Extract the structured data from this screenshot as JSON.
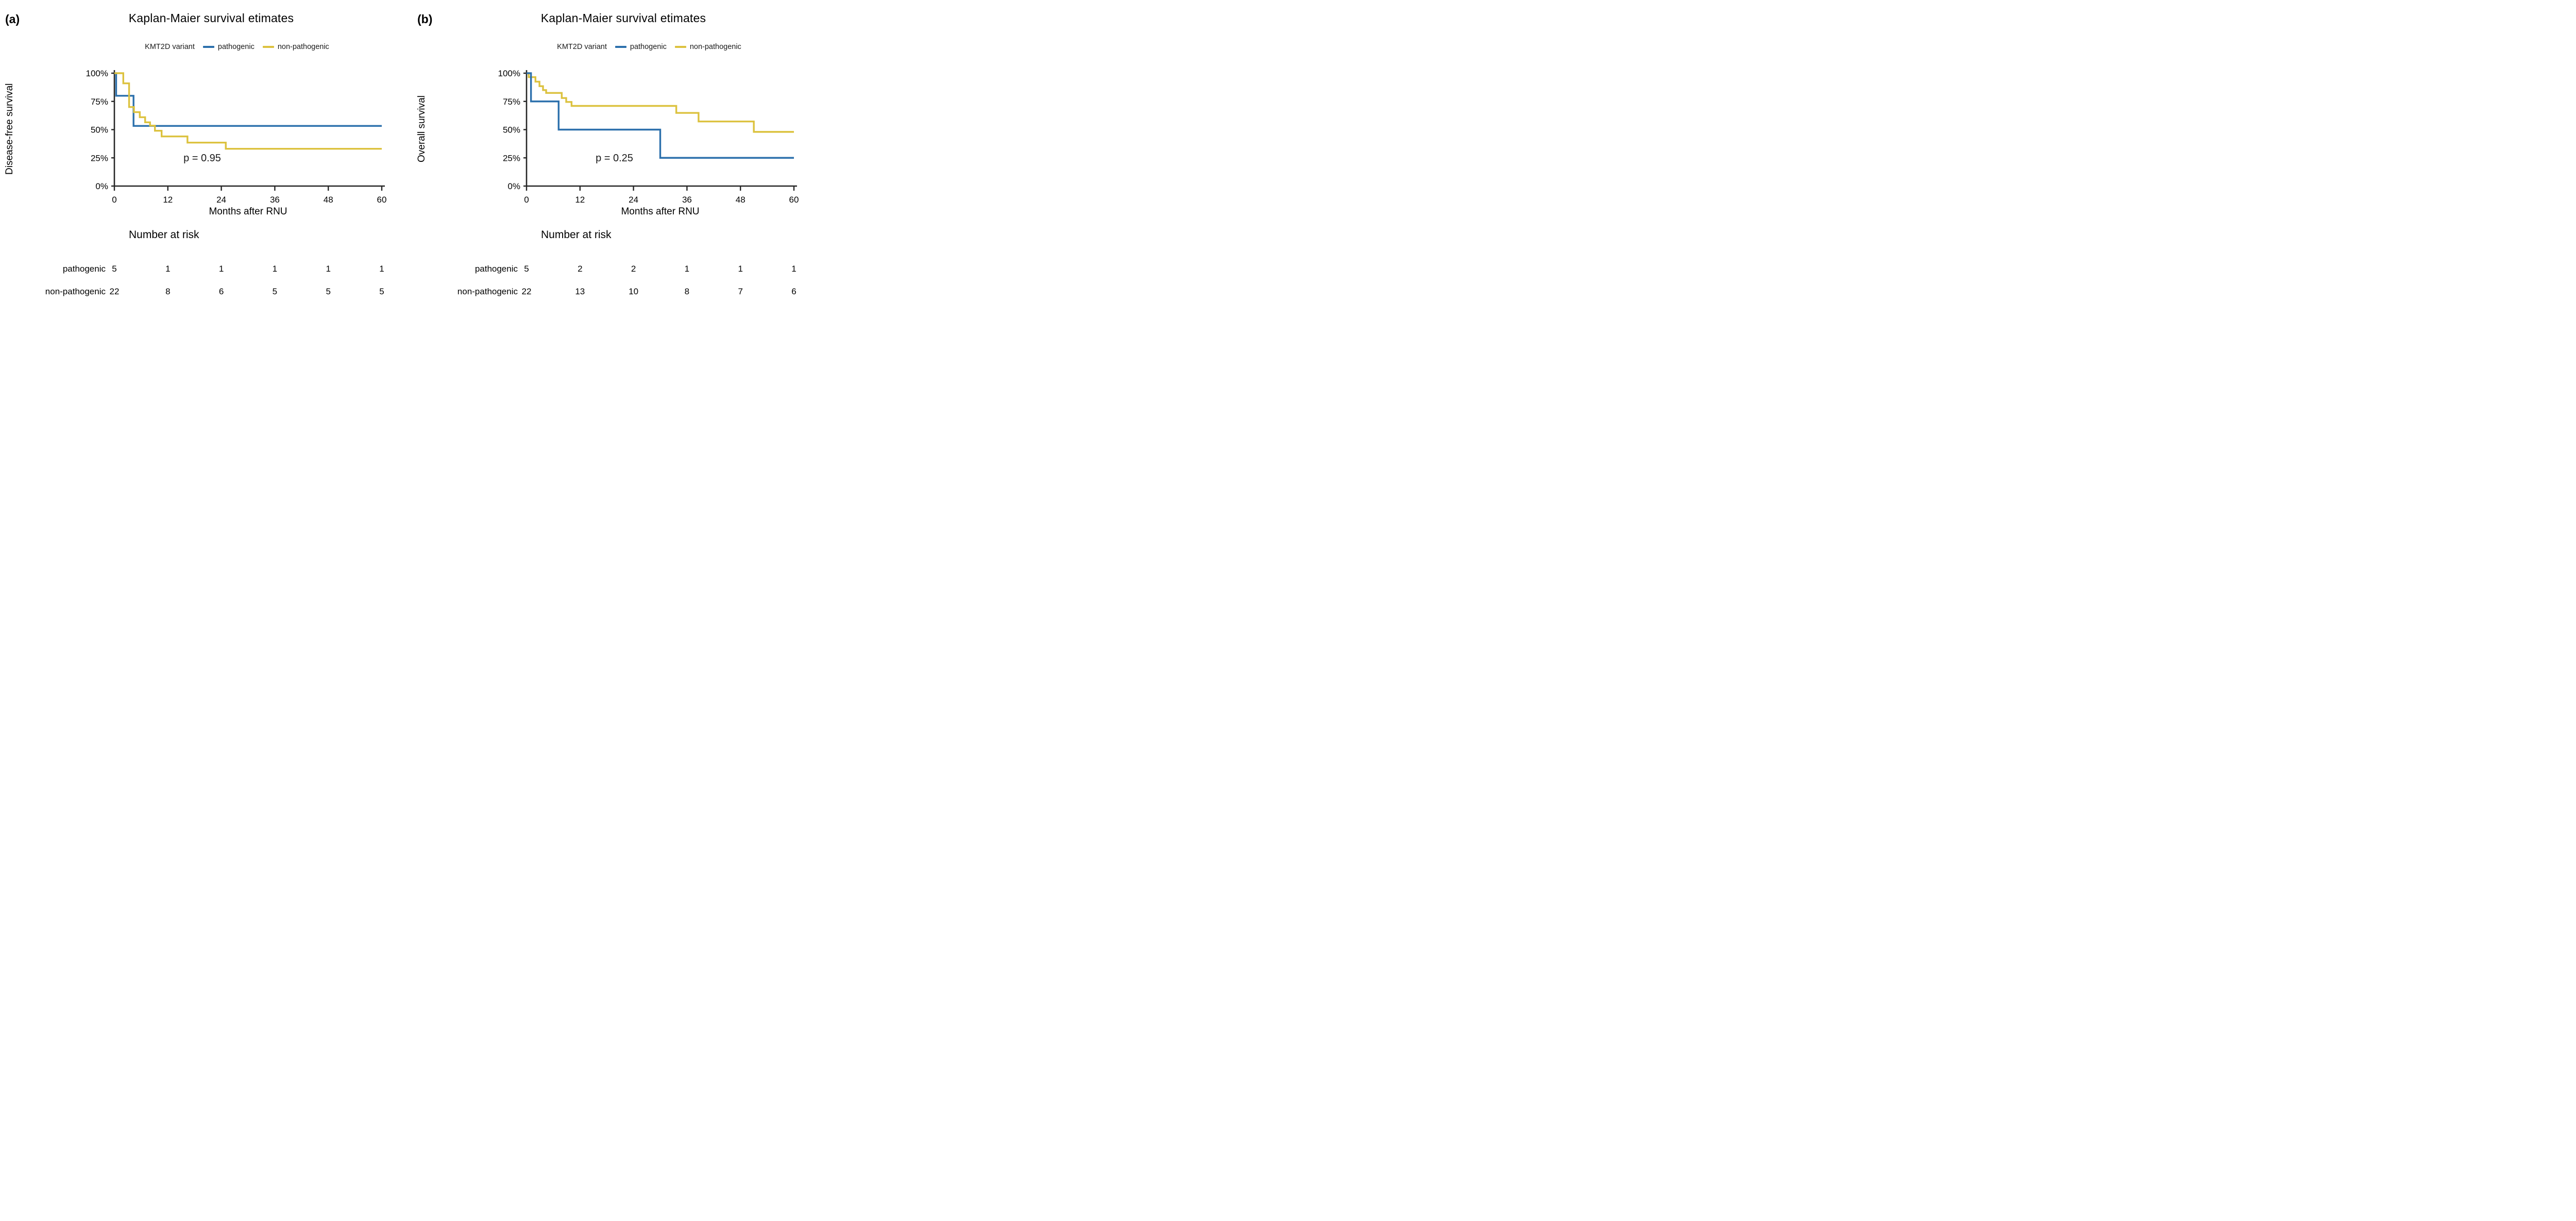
{
  "colors": {
    "background": "#ffffff",
    "text": "#1a1a1a",
    "axis": "#262626",
    "pathogenic": "#2c70ac",
    "non_pathogenic": "#dcc23f"
  },
  "legend": {
    "title": "KMT2D variant",
    "items": [
      {
        "label": "pathogenic",
        "color": "#2c70ac"
      },
      {
        "label": "non-pathogenic",
        "color": "#dcc23f"
      }
    ]
  },
  "chart_data": [
    {
      "type": "line",
      "subtype": "kaplan-meier-step",
      "letter": "(a)",
      "title": "Kaplan-Maier survival etimates",
      "ylabel": "Disease-free survival",
      "xlabel": "Months after RNU",
      "p_label": "p = 0.95",
      "xlim": [
        0,
        60
      ],
      "ylim": [
        0,
        100
      ],
      "x_ticks": [
        0,
        12,
        24,
        36,
        48,
        60
      ],
      "y_ticks": [
        {
          "value": 100,
          "label": "100%"
        },
        {
          "value": 75,
          "label": "75%"
        },
        {
          "value": 50,
          "label": "50%"
        },
        {
          "value": 25,
          "label": "25%"
        },
        {
          "value": 0,
          "label": "0%"
        }
      ],
      "grid": false,
      "legend_position": "top",
      "series": [
        {
          "name": "pathogenic",
          "color": "#2c70ac",
          "points": [
            [
              0,
              100
            ],
            [
              0.4,
              100
            ],
            [
              0.4,
              80
            ],
            [
              4.3,
              80
            ],
            [
              4.3,
              53.3
            ],
            [
              60,
              53.3
            ]
          ]
        },
        {
          "name": "non-pathogenic",
          "color": "#dcc23f",
          "points": [
            [
              0,
              100
            ],
            [
              2,
              100
            ],
            [
              2,
              91
            ],
            [
              3.3,
              91
            ],
            [
              3.3,
              70
            ],
            [
              4.4,
              70
            ],
            [
              4.4,
              65.5
            ],
            [
              5.7,
              65.5
            ],
            [
              5.7,
              61
            ],
            [
              6.9,
              61
            ],
            [
              6.9,
              56.5
            ],
            [
              8,
              56.5
            ],
            [
              8,
              53.5
            ],
            [
              9.1,
              53.5
            ],
            [
              9.1,
              49
            ],
            [
              10.6,
              49
            ],
            [
              10.6,
              44
            ],
            [
              16.4,
              44
            ],
            [
              16.4,
              38.5
            ],
            [
              25,
              38.5
            ],
            [
              25,
              33
            ],
            [
              60,
              33
            ]
          ]
        }
      ],
      "risk_table": {
        "title": "Number at risk",
        "time_points": [
          0,
          12,
          24,
          36,
          48,
          60
        ],
        "rows": [
          {
            "label": "pathogenic",
            "values": [
              5,
              1,
              1,
              1,
              1,
              1
            ]
          },
          {
            "label": "non-pathogenic",
            "values": [
              22,
              8,
              6,
              5,
              5,
              5
            ]
          }
        ]
      }
    },
    {
      "type": "line",
      "subtype": "kaplan-meier-step",
      "letter": "(b)",
      "title": "Kaplan-Maier survival etimates",
      "ylabel": "Overall survival",
      "xlabel": "Months after RNU",
      "p_label": "p = 0.25",
      "xlim": [
        0,
        60
      ],
      "ylim": [
        0,
        100
      ],
      "x_ticks": [
        0,
        12,
        24,
        36,
        48,
        60
      ],
      "y_ticks": [
        {
          "value": 100,
          "label": "100%"
        },
        {
          "value": 75,
          "label": "75%"
        },
        {
          "value": 50,
          "label": "50%"
        },
        {
          "value": 25,
          "label": "25%"
        },
        {
          "value": 0,
          "label": "0%"
        }
      ],
      "grid": false,
      "legend_position": "top",
      "series": [
        {
          "name": "non-pathogenic",
          "color": "#dcc23f",
          "points": [
            [
              0,
              100
            ],
            [
              0.5,
              100
            ],
            [
              0.5,
              96.5
            ],
            [
              2,
              96.5
            ],
            [
              2,
              92.5
            ],
            [
              2.9,
              92.5
            ],
            [
              2.9,
              88.5
            ],
            [
              3.7,
              88.5
            ],
            [
              3.7,
              85
            ],
            [
              4.4,
              85
            ],
            [
              4.4,
              82.5
            ],
            [
              7.9,
              82.5
            ],
            [
              7.9,
              78
            ],
            [
              8.9,
              78
            ],
            [
              8.9,
              74.5
            ],
            [
              10.1,
              74.5
            ],
            [
              10.1,
              71
            ],
            [
              33.6,
              71
            ],
            [
              33.6,
              64.8
            ],
            [
              38.6,
              64.8
            ],
            [
              38.6,
              57.2
            ],
            [
              51,
              57.2
            ],
            [
              51,
              48
            ],
            [
              60,
              48
            ]
          ]
        },
        {
          "name": "pathogenic",
          "color": "#2c70ac",
          "points": [
            [
              0,
              100
            ],
            [
              1,
              100
            ],
            [
              1,
              75
            ],
            [
              7.2,
              75
            ],
            [
              7.2,
              50
            ],
            [
              30,
              50
            ],
            [
              30,
              25
            ],
            [
              60,
              25
            ]
          ]
        }
      ],
      "risk_table": {
        "title": "Number at risk",
        "time_points": [
          0,
          12,
          24,
          36,
          48,
          60
        ],
        "rows": [
          {
            "label": "pathogenic",
            "values": [
              5,
              2,
              2,
              1,
              1,
              1
            ]
          },
          {
            "label": "non-pathogenic",
            "values": [
              22,
              13,
              10,
              8,
              7,
              6
            ]
          }
        ]
      }
    }
  ]
}
